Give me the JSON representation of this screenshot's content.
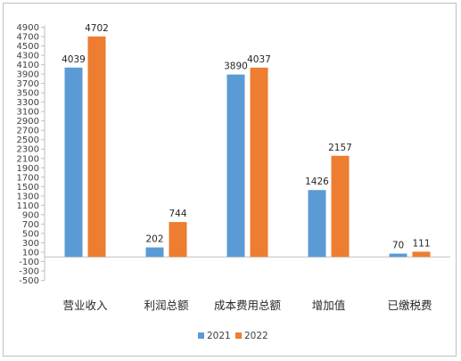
{
  "chart_data": {
    "type": "bar",
    "categories": [
      "营业收入",
      "利润总额",
      "成本费用总额",
      "增加值",
      "已缴税费"
    ],
    "series": [
      {
        "name": "2021",
        "values": [
          4039,
          202,
          3890,
          1426,
          70
        ],
        "color": "#5B9BD5"
      },
      {
        "name": "2022",
        "values": [
          4702,
          744,
          4037,
          2157,
          111
        ],
        "color": "#ED7D31"
      }
    ],
    "ylim": [
      -500,
      4900
    ],
    "ytick_step": 200,
    "grid": false,
    "legend": "bottom",
    "title": "",
    "xlabel": "",
    "ylabel": ""
  }
}
